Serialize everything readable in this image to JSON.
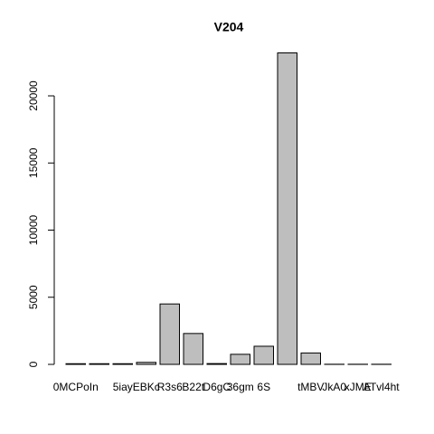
{
  "chart_data": {
    "type": "bar",
    "title": "V204",
    "categories": [
      "0MCPoIn",
      null,
      "5iay",
      "EBKc",
      "R3s6",
      "B22t",
      "D6gC",
      "36gm",
      "6S",
      null,
      "tMBV",
      "JkA0",
      "xJME",
      "ATvl4ht"
    ],
    "values": [
      50,
      50,
      50,
      150,
      4500,
      2300,
      60,
      750,
      1350,
      23200,
      850,
      10,
      10,
      10
    ],
    "color": "#bebebe",
    "ylim": [
      0,
      23200
    ],
    "yticks": [
      0,
      5000,
      10000,
      15000,
      20000
    ],
    "grid": false
  }
}
